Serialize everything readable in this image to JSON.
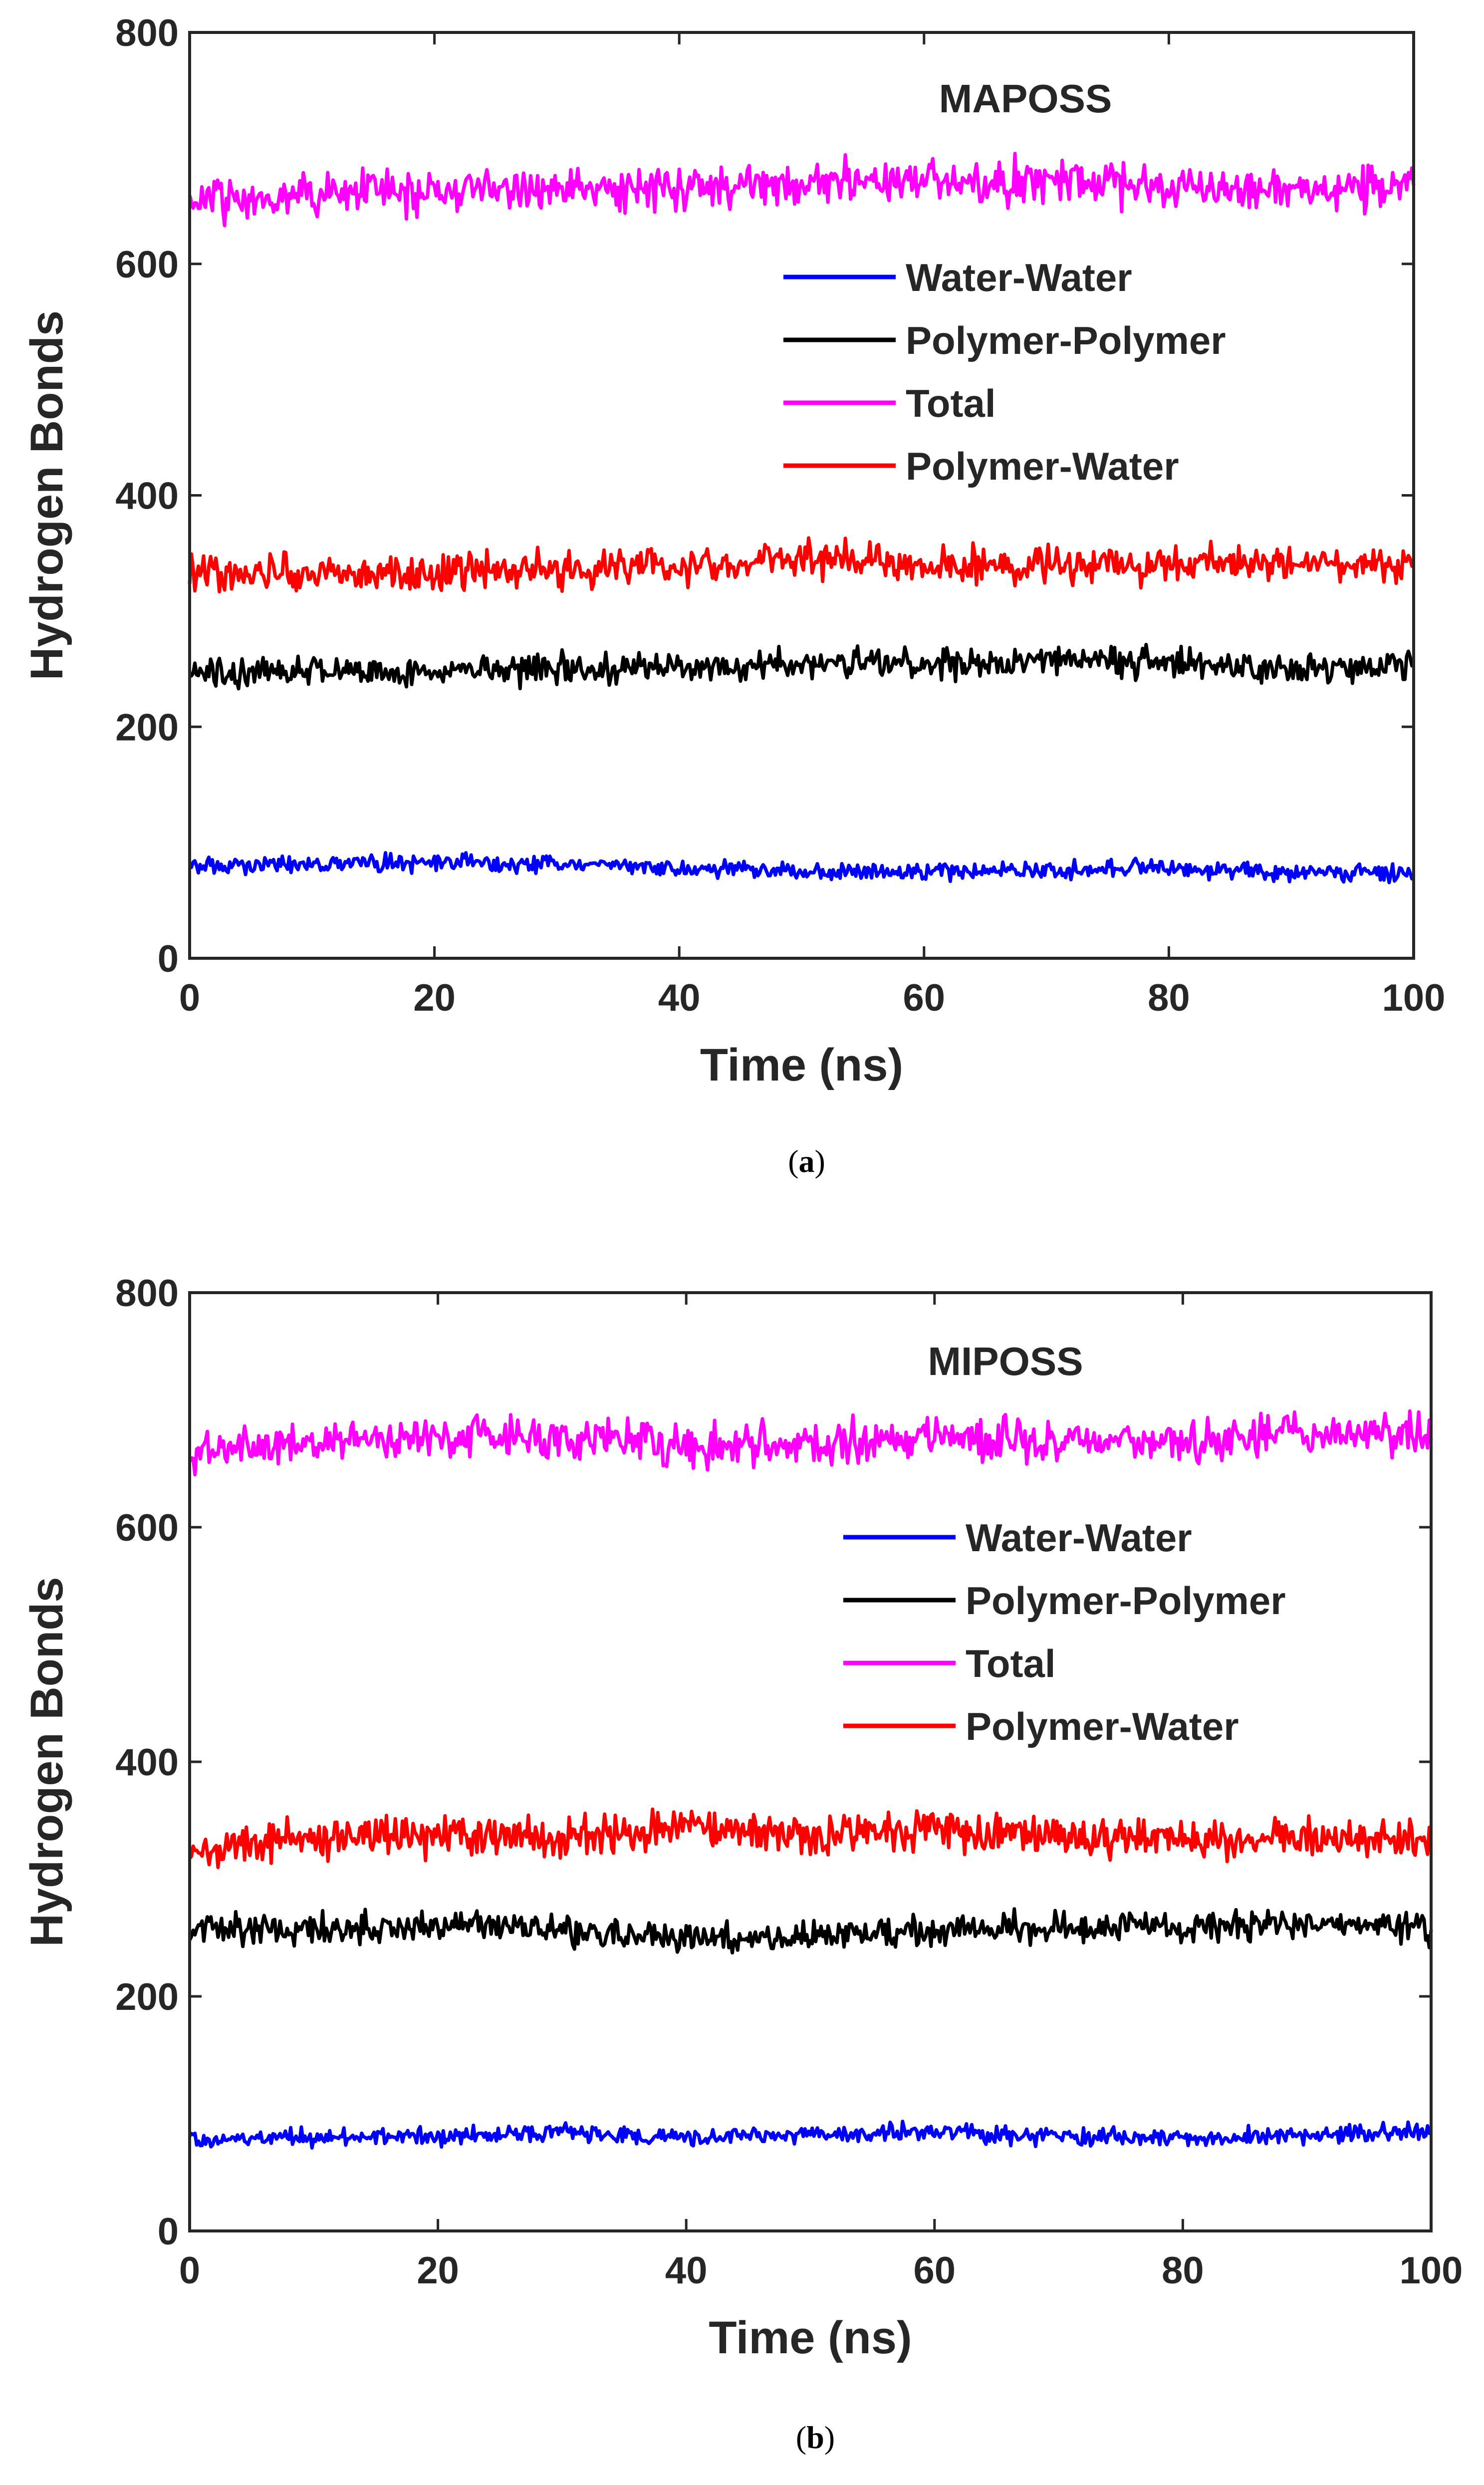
{
  "chart_data": [
    {
      "type": "line",
      "title": "MAPOSS",
      "panel_label": "(a)",
      "panel_letter": "a",
      "xlabel": "Time (ns)",
      "ylabel": "Hydrogen Bonds",
      "xlim": [
        0,
        100
      ],
      "ylim": [
        0,
        800
      ],
      "xticks": [
        0,
        20,
        40,
        60,
        80,
        100
      ],
      "yticks": [
        0,
        200,
        400,
        600,
        800
      ],
      "legend_position": "upper-right",
      "series": [
        {
          "name": "Water-Water",
          "color": "#0000ff",
          "noise": 4,
          "x": [
            0,
            10,
            20,
            30,
            40,
            50,
            60,
            70,
            80,
            90,
            100
          ],
          "y": [
            79,
            82,
            83,
            81,
            78,
            75,
            75,
            76,
            78,
            74,
            75
          ]
        },
        {
          "name": "Polymer-Polymer",
          "color": "#000000",
          "noise": 7,
          "x": [
            0,
            10,
            20,
            30,
            40,
            50,
            60,
            70,
            80,
            90,
            100
          ],
          "y": [
            245,
            250,
            248,
            250,
            252,
            254,
            256,
            258,
            255,
            250,
            252
          ]
        },
        {
          "name": "Total",
          "color": "#ff00ff",
          "noise": 10,
          "x": [
            0,
            10,
            20,
            30,
            40,
            50,
            60,
            70,
            80,
            90,
            100
          ],
          "y": [
            655,
            663,
            662,
            665,
            667,
            670,
            670,
            672,
            668,
            665,
            665
          ]
        },
        {
          "name": "Polymer-Water",
          "color": "#ff0000",
          "noise": 9,
          "x": [
            0,
            10,
            20,
            30,
            40,
            50,
            60,
            70,
            80,
            90,
            100
          ],
          "y": [
            335,
            332,
            333,
            335,
            340,
            345,
            338,
            340,
            338,
            342,
            340
          ]
        }
      ]
    },
    {
      "type": "line",
      "title": "MIPOSS",
      "panel_label": "(b)",
      "panel_letter": "b",
      "xlabel": "Time (ns)",
      "ylabel": "Hydrogen Bonds",
      "xlim": [
        0,
        100
      ],
      "ylim": [
        0,
        800
      ],
      "xticks": [
        0,
        20,
        40,
        60,
        80,
        100
      ],
      "yticks": [
        0,
        200,
        400,
        600,
        800
      ],
      "legend_position": "upper-right",
      "series": [
        {
          "name": "Water-Water",
          "color": "#0000ff",
          "noise": 4,
          "x": [
            0,
            10,
            20,
            30,
            40,
            50,
            60,
            70,
            80,
            90,
            100
          ],
          "y": [
            78,
            80,
            80,
            85,
            80,
            82,
            85,
            80,
            78,
            82,
            85
          ]
        },
        {
          "name": "Polymer-Polymer",
          "color": "#000000",
          "noise": 7,
          "x": [
            0,
            10,
            20,
            30,
            40,
            50,
            60,
            70,
            80,
            90,
            100
          ],
          "y": [
            255,
            258,
            260,
            258,
            250,
            252,
            255,
            258,
            260,
            262,
            258
          ]
        },
        {
          "name": "Total",
          "color": "#ff00ff",
          "noise": 10,
          "x": [
            0,
            10,
            20,
            30,
            40,
            50,
            60,
            70,
            80,
            90,
            100
          ],
          "y": [
            665,
            672,
            675,
            678,
            670,
            672,
            675,
            672,
            675,
            678,
            680
          ]
        },
        {
          "name": "Polymer-Water",
          "color": "#ff0000",
          "noise": 9,
          "x": [
            0,
            10,
            20,
            30,
            40,
            50,
            60,
            70,
            80,
            90,
            100
          ],
          "y": [
            325,
            335,
            338,
            335,
            345,
            338,
            340,
            338,
            335,
            335,
            335
          ]
        }
      ]
    }
  ]
}
